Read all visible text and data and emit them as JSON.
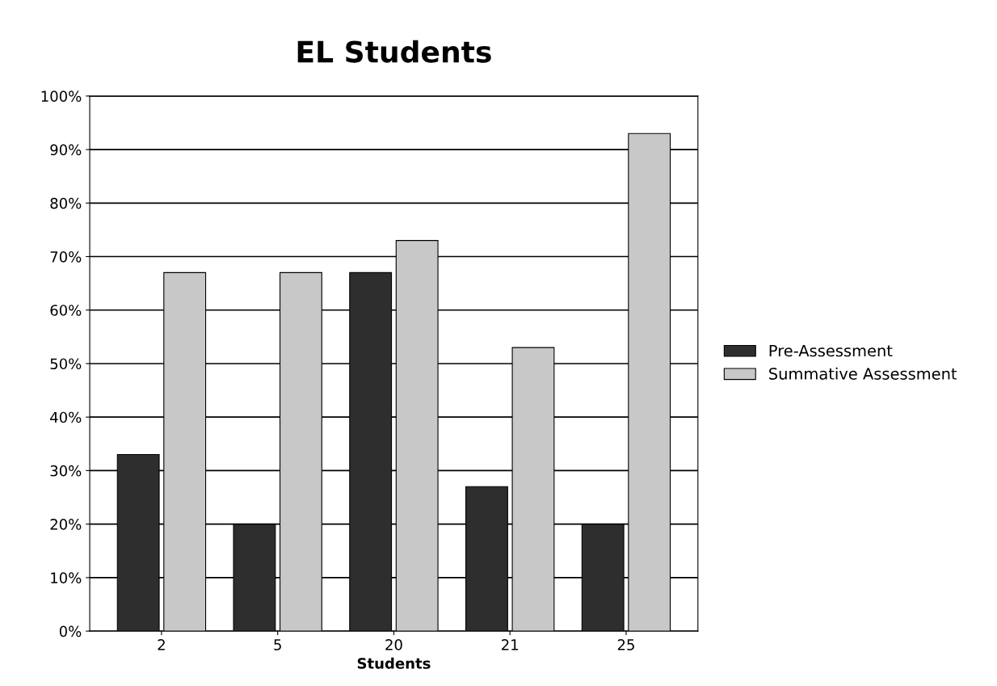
{
  "chart_data": {
    "type": "bar",
    "title": "EL Students",
    "xlabel": "Students",
    "categories": [
      "2",
      "5",
      "20",
      "21",
      "25"
    ],
    "series": [
      {
        "name": "Pre-Assessment",
        "color": "#2e2e2e",
        "values": [
          33,
          20,
          67,
          27,
          20
        ]
      },
      {
        "name": "Summative Assessment",
        "color": "#c8c8c8",
        "values": [
          67,
          67,
          73,
          53,
          93
        ]
      }
    ],
    "ylim": [
      0,
      100
    ],
    "yticks": [
      {
        "value": 0,
        "label": "0%"
      },
      {
        "value": 10,
        "label": "10%"
      },
      {
        "value": 20,
        "label": "20%"
      },
      {
        "value": 30,
        "label": "30%"
      },
      {
        "value": 40,
        "label": "40%"
      },
      {
        "value": 50,
        "label": "50%"
      },
      {
        "value": 60,
        "label": "60%"
      },
      {
        "value": 70,
        "label": "70%"
      },
      {
        "value": 80,
        "label": "80%"
      },
      {
        "value": 90,
        "label": "90%"
      },
      {
        "value": 100,
        "label": "100%"
      }
    ],
    "grid": "y",
    "legend": "right"
  }
}
